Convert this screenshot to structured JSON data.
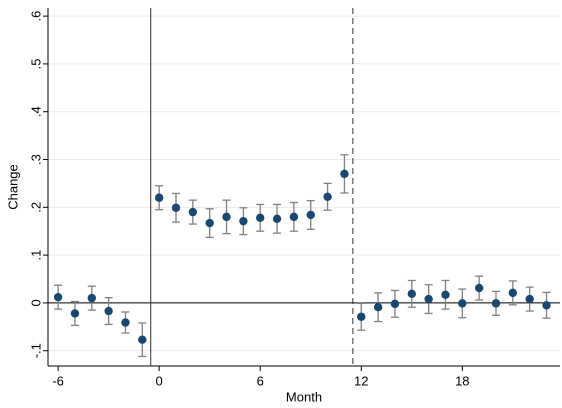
{
  "chart_data": {
    "type": "scatter",
    "x_label": "Month",
    "y_label": "Change",
    "x": [
      -6,
      -5,
      -4,
      -3,
      -2,
      -1,
      0,
      1,
      2,
      3,
      4,
      5,
      6,
      7,
      8,
      9,
      10,
      11,
      12,
      13,
      14,
      15,
      16,
      17,
      18,
      19,
      20,
      21,
      22,
      23
    ],
    "series": [
      {
        "color": "#1a476f",
        "error_color": "#808080",
        "values": [
          0.012,
          -0.022,
          0.01,
          -0.017,
          -0.041,
          -0.077,
          0.22,
          0.199,
          0.19,
          0.167,
          0.18,
          0.171,
          0.178,
          0.176,
          0.18,
          0.184,
          0.222,
          0.27,
          -0.029,
          -0.009,
          -0.002,
          0.019,
          0.008,
          0.017,
          -0.001,
          0.031,
          -0.001,
          0.021,
          0.008,
          -0.005
        ],
        "errors": [
          0.025,
          0.025,
          0.025,
          0.028,
          0.022,
          0.035,
          0.025,
          0.03,
          0.025,
          0.03,
          0.035,
          0.028,
          0.028,
          0.03,
          0.03,
          0.03,
          0.028,
          0.04,
          0.028,
          0.03,
          0.028,
          0.028,
          0.03,
          0.03,
          0.03,
          0.025,
          0.025,
          0.025,
          0.025,
          0.027
        ]
      }
    ],
    "xlim": [
      -6.6,
      23.8
    ],
    "xticks": [
      -6,
      0,
      6,
      12,
      18
    ],
    "ylim": [
      -0.132,
      0.617
    ],
    "yticks": [
      {
        "value": -0.1,
        "label": "-.1"
      },
      0,
      {
        "value": 0.1,
        "label": ".1"
      },
      {
        "value": 0.2,
        "label": ".2"
      },
      {
        "value": 0.3,
        "label": ".3"
      },
      {
        "value": 0.4,
        "label": ".4"
      },
      {
        "value": 0.5,
        "label": ".5"
      },
      {
        "value": 0.6,
        "label": ".6"
      }
    ],
    "grid": true,
    "hline": 0,
    "vlines": [
      {
        "x": -0.5,
        "style": "solid"
      },
      {
        "x": 11.5,
        "style": "dashed"
      }
    ]
  }
}
